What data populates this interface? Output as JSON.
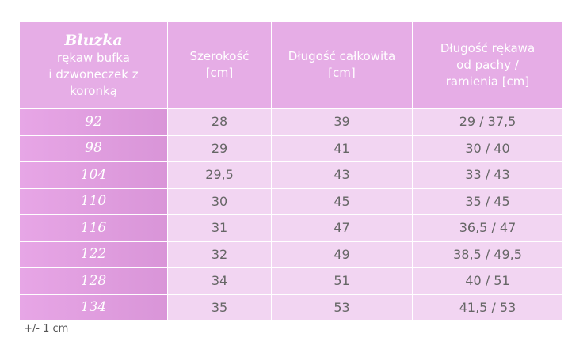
{
  "header": {
    "title": "Bluzka",
    "subtitle": [
      "rękaw bufka",
      "i dzwoneczek z",
      "koronką"
    ],
    "columns": [
      [
        "Szerokość",
        "[cm]"
      ],
      [
        "Długość całkowita",
        "[cm]"
      ],
      [
        "Długość rękawa",
        "od pachy /",
        "ramienia [cm]"
      ]
    ]
  },
  "table": {
    "rows": [
      [
        "92",
        "28",
        "39",
        "29 / 37,5"
      ],
      [
        "98",
        "29",
        "41",
        "30 / 40"
      ],
      [
        "104",
        "29,5",
        "43",
        "33 / 43"
      ],
      [
        "110",
        "30",
        "45",
        "35 / 45"
      ],
      [
        "116",
        "31",
        "47",
        "36,5 / 47"
      ],
      [
        "122",
        "32",
        "49",
        "38,5 / 49,5"
      ],
      [
        "128",
        "34",
        "51",
        "40 / 51"
      ],
      [
        "134",
        "35",
        "53",
        "41,5 / 53"
      ]
    ]
  },
  "footnote": "+/- 1 cm"
}
